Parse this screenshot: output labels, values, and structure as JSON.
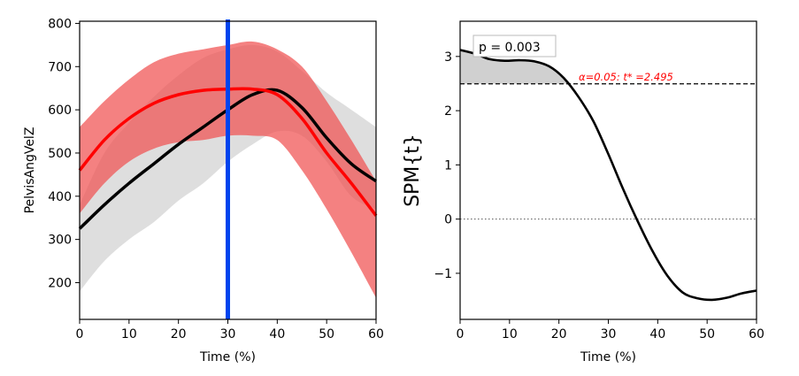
{
  "chart_data": [
    {
      "type": "line",
      "title": "",
      "xlabel": "Time (%)",
      "ylabel": "PelvisAngVelZ",
      "xlim": [
        0,
        60
      ],
      "ylim": [
        115,
        805
      ],
      "x_ticks": [
        0,
        10,
        20,
        30,
        40,
        50,
        60
      ],
      "y_ticks": [
        200,
        300,
        400,
        500,
        600,
        700,
        800
      ],
      "grid": false,
      "legend": "none",
      "x": [
        0,
        5,
        10,
        15,
        20,
        25,
        30,
        35,
        40,
        45,
        50,
        55,
        60
      ],
      "series": [
        {
          "color": "#000000",
          "band_color": "#c8c8c8",
          "mean": [
            325,
            380,
            430,
            475,
            520,
            560,
            600,
            635,
            645,
            605,
            535,
            475,
            435
          ],
          "lower": [
            180,
            250,
            300,
            340,
            390,
            430,
            480,
            520,
            550,
            540,
            480,
            400,
            370
          ],
          "upper": [
            380,
            500,
            570,
            630,
            680,
            720,
            740,
            750,
            735,
            690,
            640,
            600,
            560
          ]
        },
        {
          "color": "#ff0000",
          "band_color": "#f05050",
          "mean": [
            460,
            530,
            580,
            615,
            635,
            645,
            648,
            648,
            635,
            580,
            500,
            430,
            355
          ],
          "lower": [
            360,
            430,
            480,
            510,
            525,
            530,
            540,
            540,
            530,
            460,
            370,
            270,
            165
          ],
          "upper": [
            560,
            620,
            670,
            710,
            730,
            740,
            750,
            758,
            740,
            700,
            620,
            530,
            435
          ]
        }
      ],
      "vertical_marker": {
        "x": 30,
        "color": "#0044ee"
      }
    },
    {
      "type": "line",
      "title": "",
      "xlabel": "Time (%)",
      "ylabel": "SPM{t}",
      "xlim": [
        0,
        60
      ],
      "ylim": [
        -1.85,
        3.65
      ],
      "x_ticks": [
        0,
        10,
        20,
        30,
        40,
        50,
        60
      ],
      "y_ticks": [
        -1,
        0,
        1,
        2,
        3
      ],
      "y_tick_labels": [
        "−1",
        "0",
        "1",
        "2",
        "3"
      ],
      "grid": false,
      "legend": "none",
      "x": [
        0,
        3,
        6,
        9,
        12,
        15,
        18,
        21,
        24,
        27,
        30,
        33,
        36,
        39,
        42,
        45,
        48,
        51,
        54,
        57,
        60
      ],
      "series": [
        {
          "color": "#000000",
          "values": [
            3.12,
            3.05,
            2.95,
            2.92,
            2.93,
            2.91,
            2.82,
            2.6,
            2.25,
            1.8,
            1.2,
            0.55,
            -0.05,
            -0.6,
            -1.05,
            -1.35,
            -1.46,
            -1.49,
            -1.45,
            -1.37,
            -1.32
          ]
        }
      ],
      "threshold": {
        "value": 2.495,
        "label": "α=0.05:  t* =2.495",
        "color": "#ff0000"
      },
      "zero_line": 0,
      "annotation": "p = 0.003",
      "shaded_region": {
        "x_from": 0,
        "x_to": 22.3,
        "color": "#d0d0d0"
      }
    }
  ]
}
